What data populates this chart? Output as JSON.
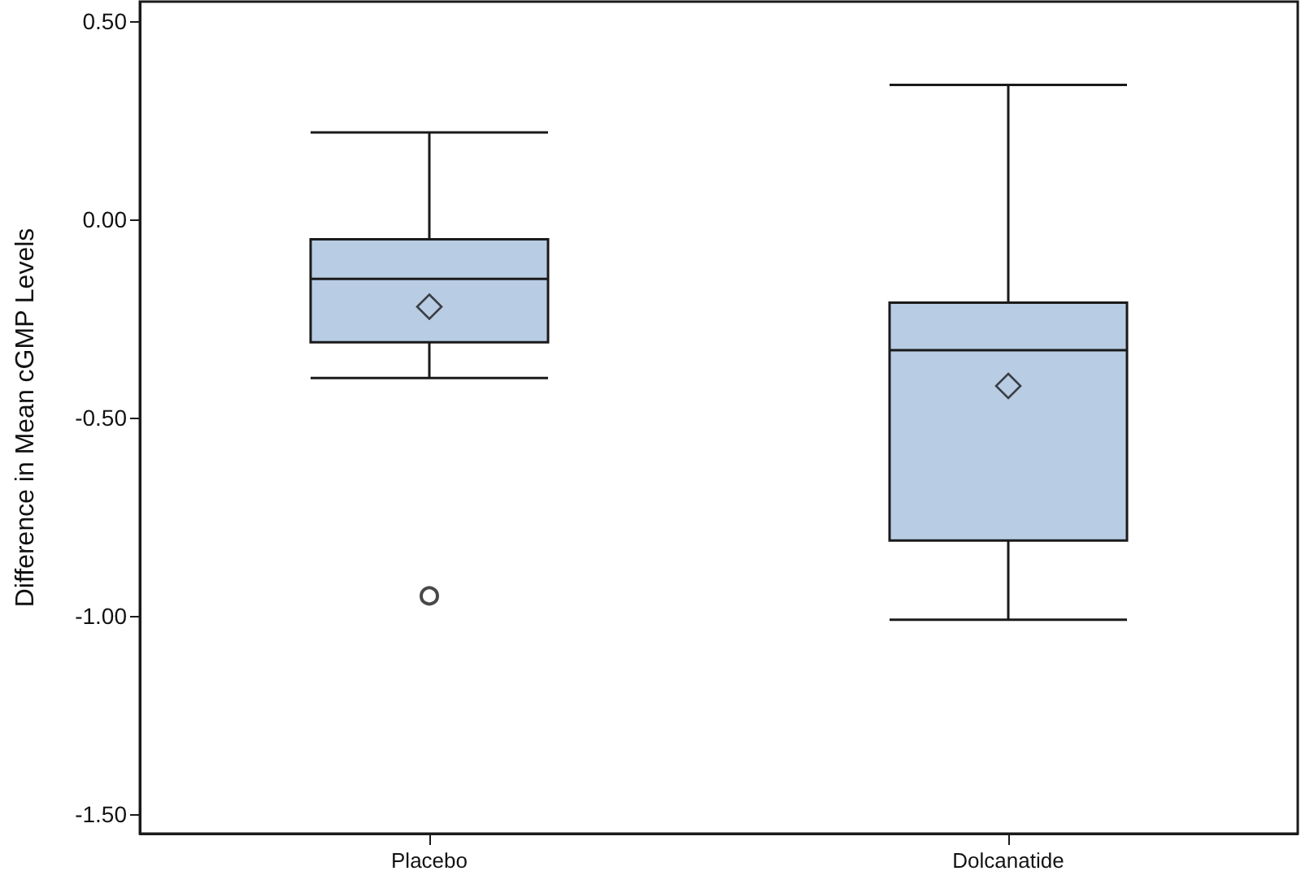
{
  "chart_data": {
    "type": "box",
    "ylabel": "Difference in Mean cGMP Levels",
    "categories": [
      "Placebo",
      "Dolcanatide"
    ],
    "color": "#b8cce4",
    "boxes": [
      {
        "low": -0.4,
        "q1": -0.31,
        "median": -0.15,
        "q3": -0.05,
        "high": 0.22,
        "mean": -0.22,
        "outliers": [
          -0.95
        ]
      },
      {
        "low": -1.01,
        "q1": -0.81,
        "median": -0.33,
        "q3": -0.21,
        "high": 0.34,
        "mean": -0.42
      }
    ],
    "ylim": [
      -1.55,
      0.55
    ],
    "yticks": [
      {
        "value": -1.5,
        "label": "-1.50"
      },
      {
        "value": -1.0,
        "label": "-1.00"
      },
      {
        "value": -0.5,
        "label": "-0.50"
      },
      {
        "value": 0,
        "label": "0.00"
      },
      {
        "value": 0.5,
        "label": "0.50"
      }
    ],
    "grid": false
  }
}
